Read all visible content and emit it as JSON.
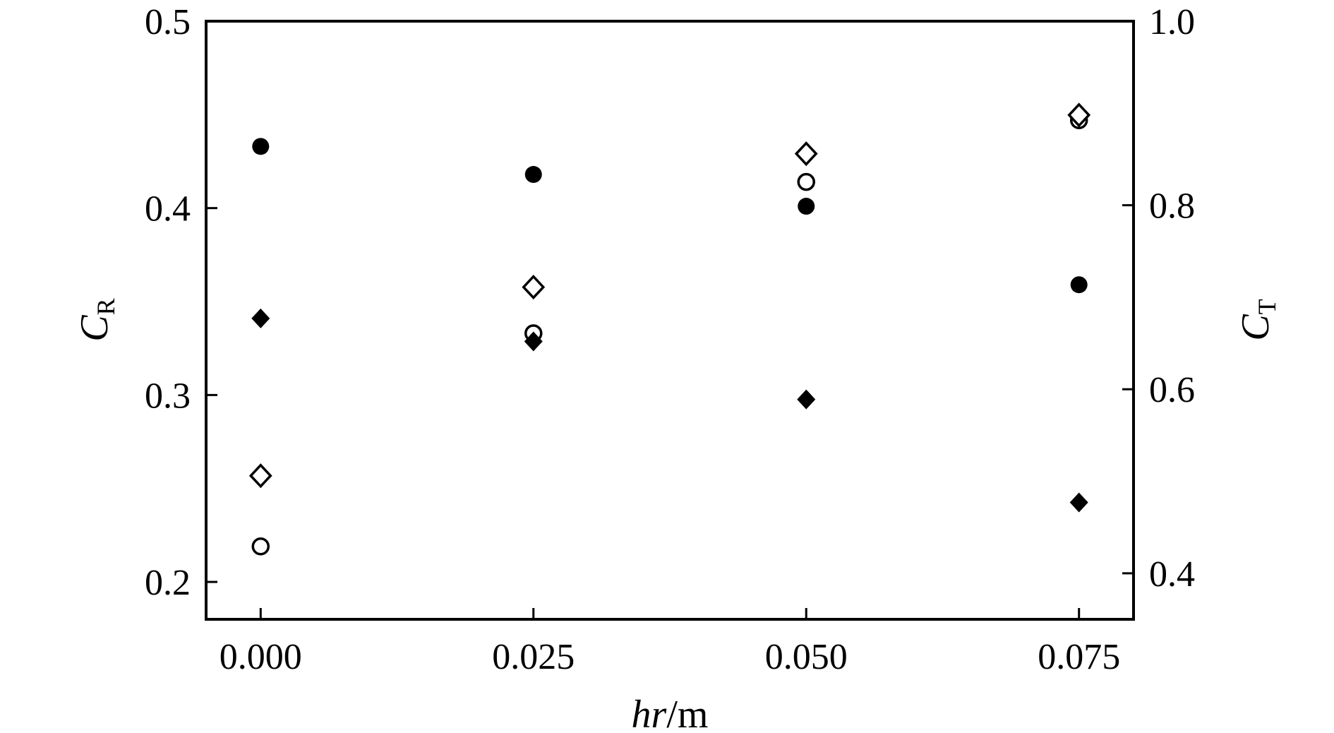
{
  "chart_data": {
    "type": "scatter",
    "title": "",
    "xlabel": {
      "italic": "hr",
      "rest": "/m"
    },
    "ylabel_left": {
      "main": "C",
      "sub": "R"
    },
    "ylabel_right": {
      "main": "C",
      "sub": "T"
    },
    "x_ticks": [
      "0.000",
      "0.025",
      "0.050",
      "0.075"
    ],
    "x_tick_values": [
      0.0,
      0.025,
      0.05,
      0.075
    ],
    "y_left_ticks": [
      "0.2",
      "0.3",
      "0.4",
      "0.5"
    ],
    "y_left_tick_values": [
      0.2,
      0.3,
      0.4,
      0.5
    ],
    "y_right_ticks": [
      "0.4",
      "0.6",
      "0.8",
      "1.0"
    ],
    "y_right_tick_values": [
      0.4,
      0.6,
      0.8,
      1.0
    ],
    "xlim": [
      -0.005,
      0.08
    ],
    "ylim_left": [
      0.18,
      0.5
    ],
    "ylim_right": [
      0.35,
      1.0
    ],
    "grid": false,
    "legend": "none",
    "series": [
      {
        "marker": "circle-filled",
        "axis": "left",
        "x": [
          0.0,
          0.025,
          0.05,
          0.075
        ],
        "y": [
          0.433,
          0.418,
          0.401,
          0.359
        ]
      },
      {
        "marker": "circle-open",
        "axis": "left",
        "x": [
          0.0,
          0.025,
          0.05,
          0.075
        ],
        "y": [
          0.219,
          0.333,
          0.414,
          0.447
        ]
      },
      {
        "marker": "diamond-filled",
        "axis": "right",
        "x": [
          0.0,
          0.025,
          0.05,
          0.075
        ],
        "y": [
          0.677,
          0.652,
          0.589,
          0.477
        ]
      },
      {
        "marker": "diamond-open",
        "axis": "right",
        "x": [
          0.0,
          0.025,
          0.05,
          0.075
        ],
        "y": [
          0.506,
          0.711,
          0.856,
          0.898
        ]
      }
    ],
    "colors": {
      "axis": "#000000",
      "marker": "#000000"
    }
  }
}
